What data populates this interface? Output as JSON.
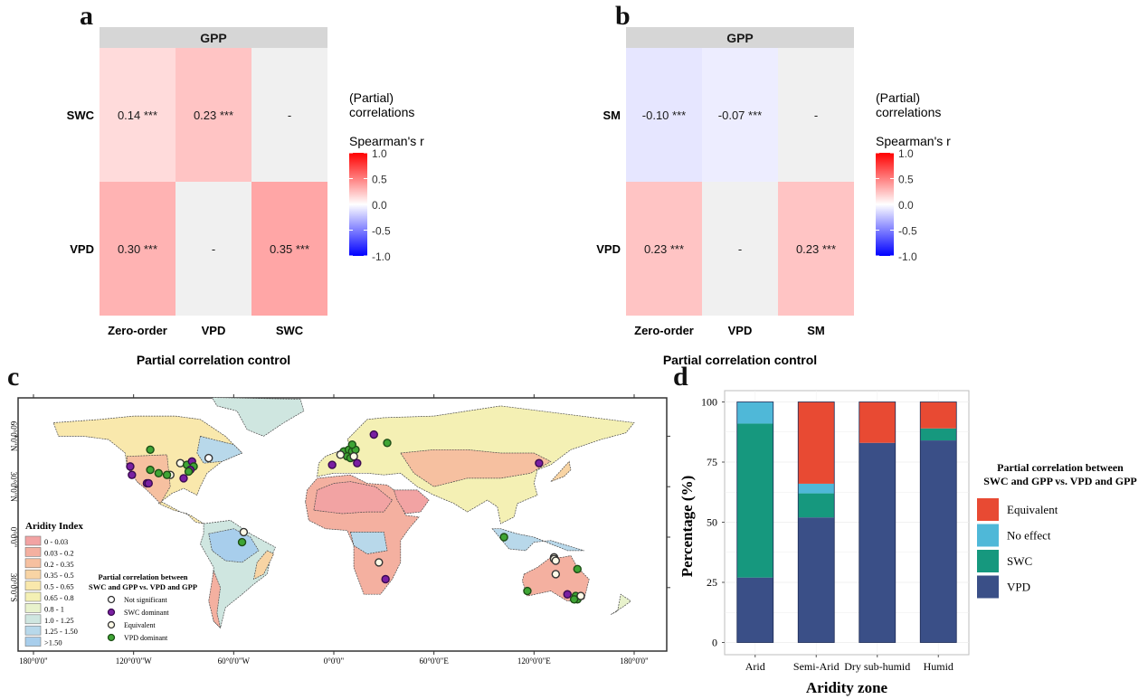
{
  "panels": {
    "a": {
      "letter": "a"
    },
    "b": {
      "letter": "b"
    },
    "c": {
      "letter": "c"
    },
    "d": {
      "letter": "d"
    }
  },
  "chart_data": [
    {
      "id": "a",
      "type": "heatmap",
      "strip_title": "GPP",
      "rows": [
        "SWC",
        "VPD"
      ],
      "columns": [
        "Zero-order",
        "VPD",
        "SWC"
      ],
      "values": [
        [
          0.14,
          0.23,
          null
        ],
        [
          0.3,
          null,
          0.35
        ]
      ],
      "labels": [
        [
          "0.14 ***",
          "0.23 ***",
          "-"
        ],
        [
          "0.30 ***",
          "-",
          "0.35 ***"
        ]
      ],
      "xlabel": "Partial correlation control",
      "legend": {
        "title_line1": "(Partial)",
        "title_line2": "correlations",
        "subtitle": "Spearman's r",
        "ticks": [
          "1.0",
          "0.5",
          "0.0",
          "-0.5",
          "-1.0"
        ],
        "range": [
          -1,
          1
        ],
        "colors": {
          "low": "#0000ff",
          "mid": "#ffffff",
          "high": "#ff0000"
        }
      },
      "na_color": "#f0f0f0"
    },
    {
      "id": "b",
      "type": "heatmap",
      "strip_title": "GPP",
      "rows": [
        "SM",
        "VPD"
      ],
      "columns": [
        "Zero-order",
        "VPD",
        "SM"
      ],
      "values": [
        [
          -0.1,
          -0.07,
          null
        ],
        [
          0.23,
          null,
          0.23
        ]
      ],
      "labels": [
        [
          "-0.10 ***",
          "-0.07 ***",
          "-"
        ],
        [
          "0.23 ***",
          "-",
          "0.23 ***"
        ]
      ],
      "xlabel": "Partial correlation control",
      "legend": {
        "title_line1": "(Partial)",
        "title_line2": "correlations",
        "subtitle": "Spearman's r",
        "ticks": [
          "1.0",
          "0.5",
          "0.0",
          "-0.5",
          "-1.0"
        ],
        "range": [
          -1,
          1
        ],
        "colors": {
          "low": "#0000ff",
          "mid": "#ffffff",
          "high": "#ff0000"
        }
      },
      "na_color": "#f0f0f0"
    },
    {
      "id": "c",
      "type": "scatter",
      "subtype": "map",
      "xticks": [
        "180°0'0\"",
        "120°0'0\"W",
        "60°0'0\"W",
        "0°0'0\"",
        "60°0'0\"E",
        "120°0'0\"E",
        "180°0'0\""
      ],
      "xtick_values": [
        -180,
        -120,
        -60,
        0,
        60,
        120,
        180
      ],
      "yticks": [
        "60°0'0\"N",
        "30°0'0\"N",
        "0°0'0\"",
        "30°0'0\"S"
      ],
      "ytick_values": [
        60,
        30,
        0,
        -30
      ],
      "aridity_legend": {
        "title": "Aridity Index",
        "classes": [
          {
            "label": "0 - 0.03",
            "color": "#f2a3a3"
          },
          {
            "label": "0.03 - 0.2",
            "color": "#f4b0a0"
          },
          {
            "label": "0.2 - 0.35",
            "color": "#f6c0a0"
          },
          {
            "label": "0.35 - 0.5",
            "color": "#f8d4a4"
          },
          {
            "label": "0.5 - 0.65",
            "color": "#f9e8ac"
          },
          {
            "label": "0.65 - 0.8",
            "color": "#f4f0b4"
          },
          {
            "label": "0.8 - 1",
            "color": "#e8f2cc"
          },
          {
            "label": "1.0 - 1.25",
            "color": "#cfe6e0"
          },
          {
            "label": "1.25 - 1.50",
            "color": "#b8d8ea"
          },
          {
            "label": ">1.50",
            "color": "#a8ceec"
          }
        ]
      },
      "site_legend": {
        "title_line1": "Partial correlation between",
        "title_line2": "SWC and GPP vs. VPD and GPP",
        "classes": [
          {
            "label": "Not significant",
            "key": "ns",
            "fill": "#ffffff",
            "stroke": "#333333"
          },
          {
            "label": "SWC dominant",
            "key": "swc",
            "fill": "#7a1fa2",
            "stroke": "#3a0a50"
          },
          {
            "label": "Equivalent",
            "key": "eq",
            "fill": "#fffbe8",
            "stroke": "#333333"
          },
          {
            "label": "VPD dominant",
            "key": "vpd",
            "fill": "#3fa535",
            "stroke": "#1d4d16"
          }
        ]
      },
      "points": [
        {
          "lon": -110,
          "lat": 52,
          "cls": "vpd"
        },
        {
          "lon": -122,
          "lat": 42,
          "cls": "swc"
        },
        {
          "lon": -121,
          "lat": 37,
          "cls": "swc"
        },
        {
          "lon": -110,
          "lat": 40,
          "cls": "vpd"
        },
        {
          "lon": -105,
          "lat": 38,
          "cls": "vpd"
        },
        {
          "lon": -98,
          "lat": 37,
          "cls": "eq"
        },
        {
          "lon": -100,
          "lat": 37,
          "cls": "vpd"
        },
        {
          "lon": -112,
          "lat": 32,
          "cls": "swc"
        },
        {
          "lon": -111,
          "lat": 32,
          "cls": "swc"
        },
        {
          "lon": -92,
          "lat": 44,
          "cls": "eq"
        },
        {
          "lon": -88,
          "lat": 43,
          "cls": "vpd"
        },
        {
          "lon": -85,
          "lat": 45,
          "cls": "swc"
        },
        {
          "lon": -84,
          "lat": 42,
          "cls": "vpd"
        },
        {
          "lon": -86,
          "lat": 40,
          "cls": "swc"
        },
        {
          "lon": -87,
          "lat": 39,
          "cls": "vpd"
        },
        {
          "lon": -90,
          "lat": 35,
          "cls": "swc"
        },
        {
          "lon": -75,
          "lat": 47,
          "cls": "ns"
        },
        {
          "lon": -54,
          "lat": 3,
          "cls": "eq"
        },
        {
          "lon": -55,
          "lat": -3,
          "cls": "vpd"
        },
        {
          "lon": -1,
          "lat": 43,
          "cls": "swc"
        },
        {
          "lon": 6,
          "lat": 51,
          "cls": "vpd"
        },
        {
          "lon": 9,
          "lat": 52,
          "cls": "vpd"
        },
        {
          "lon": 11,
          "lat": 51,
          "cls": "vpd"
        },
        {
          "lon": 13,
          "lat": 52,
          "cls": "vpd"
        },
        {
          "lon": 8,
          "lat": 48,
          "cls": "vpd"
        },
        {
          "lon": 10,
          "lat": 47,
          "cls": "vpd"
        },
        {
          "lon": 12,
          "lat": 48,
          "cls": "eq"
        },
        {
          "lon": 11,
          "lat": 55,
          "cls": "vpd"
        },
        {
          "lon": 4,
          "lat": 49,
          "cls": "eq"
        },
        {
          "lon": 14,
          "lat": 44,
          "cls": "swc"
        },
        {
          "lon": 24,
          "lat": 61,
          "cls": "swc"
        },
        {
          "lon": 32,
          "lat": 56,
          "cls": "vpd"
        },
        {
          "lon": 123,
          "lat": 44,
          "cls": "swc"
        },
        {
          "lon": 102,
          "lat": 0,
          "cls": "vpd"
        },
        {
          "lon": 27,
          "lat": -15,
          "cls": "eq"
        },
        {
          "lon": 31,
          "lat": -25,
          "cls": "swc"
        },
        {
          "lon": 132,
          "lat": -12,
          "cls": "eq"
        },
        {
          "lon": 132,
          "lat": -13,
          "cls": "eq"
        },
        {
          "lon": 133,
          "lat": -14,
          "cls": "eq"
        },
        {
          "lon": 133,
          "lat": -22,
          "cls": "eq"
        },
        {
          "lon": 146,
          "lat": -19,
          "cls": "vpd"
        },
        {
          "lon": 116,
          "lat": -32,
          "cls": "vpd"
        },
        {
          "lon": 140,
          "lat": -34,
          "cls": "swc"
        },
        {
          "lon": 145,
          "lat": -35,
          "cls": "vpd"
        },
        {
          "lon": 146,
          "lat": -37,
          "cls": "vpd"
        },
        {
          "lon": 148,
          "lat": -35,
          "cls": "eq"
        },
        {
          "lon": 144,
          "lat": -37,
          "cls": "vpd"
        }
      ]
    },
    {
      "id": "d",
      "type": "bar",
      "subtype": "stacked",
      "categories": [
        "Arid",
        "Semi-Arid",
        "Dry sub-humid",
        "Humid"
      ],
      "series": [
        {
          "name": "VPD",
          "color": "#3a4f87",
          "values": [
            27,
            52,
            83,
            84
          ]
        },
        {
          "name": "SWC",
          "color": "#16987e",
          "values": [
            64,
            10,
            0,
            5
          ]
        },
        {
          "name": "No effect",
          "color": "#4fb8d8",
          "values": [
            9,
            4,
            0,
            0
          ]
        },
        {
          "name": "Equivalent",
          "color": "#e84a33",
          "values": [
            0,
            34,
            17,
            11
          ]
        }
      ],
      "legend_order": [
        "Equivalent",
        "No effect",
        "SWC",
        "VPD"
      ],
      "legend_title_line1": "Partial correlation between",
      "legend_title_line2": "SWC and GPP vs. VPD and GPP",
      "legend_position": "right",
      "xlabel": "Aridity zone",
      "ylabel": "Percentage (%)",
      "yticks": [
        "0",
        "25",
        "50",
        "75",
        "100"
      ],
      "ylim": [
        0,
        100
      ],
      "grid": true
    }
  ]
}
